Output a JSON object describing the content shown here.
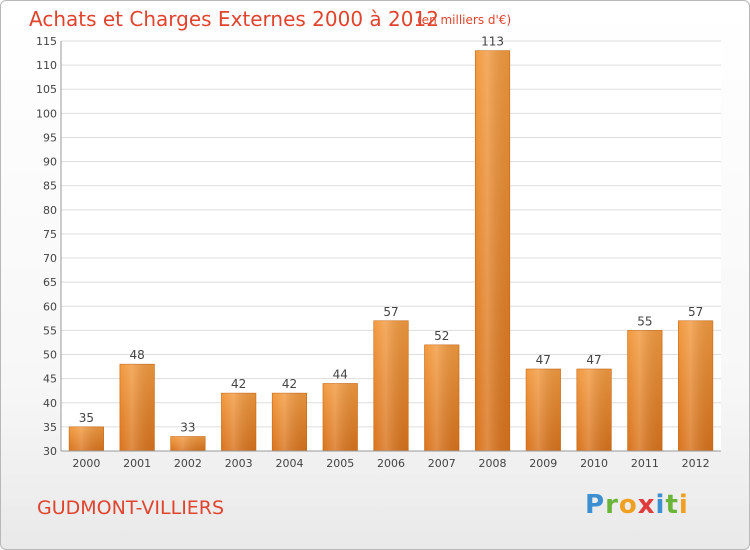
{
  "chart_data": {
    "type": "bar",
    "title": "Achats et Charges Externes 2000 à 2012",
    "subtitle": "(en milliers d'€)",
    "categories": [
      "2000",
      "2001",
      "2002",
      "2003",
      "2004",
      "2005",
      "2006",
      "2007",
      "2008",
      "2009",
      "2010",
      "2011",
      "2012"
    ],
    "values": [
      35,
      48,
      33,
      42,
      42,
      44,
      57,
      52,
      113,
      47,
      47,
      55,
      57
    ],
    "ylim": [
      30,
      115
    ],
    "yticks": [
      30,
      35,
      40,
      45,
      50,
      55,
      60,
      65,
      70,
      75,
      80,
      85,
      90,
      95,
      100,
      105,
      110,
      115
    ],
    "grid": true,
    "bar_color": "#f29a3f",
    "bar_color_dark": "#d9731c"
  },
  "footer": {
    "place": "GUDMONT-VILLIERS",
    "logo_letters": [
      {
        "char": "P",
        "color": "#3c8fd0"
      },
      {
        "char": "r",
        "color": "#6bb43a"
      },
      {
        "char": "o",
        "color": "#f0a020"
      },
      {
        "char": "x",
        "color": "#e03c3c"
      },
      {
        "char": "i",
        "color": "#3c8fd0"
      },
      {
        "char": "t",
        "color": "#6bb43a"
      },
      {
        "char": "i",
        "color": "#f0a020"
      }
    ]
  }
}
